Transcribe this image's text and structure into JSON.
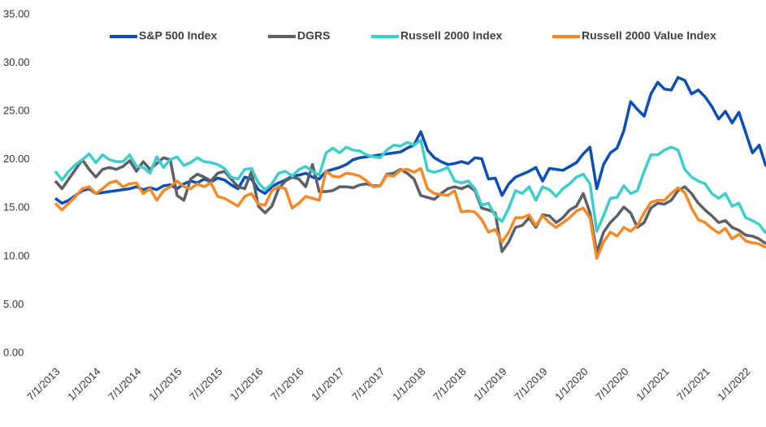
{
  "chart_data": {
    "type": "line",
    "categories": [
      "7/1/2013",
      null,
      null,
      null,
      null,
      null,
      "1/1/2014",
      null,
      null,
      null,
      null,
      null,
      "7/1/2014",
      null,
      null,
      null,
      null,
      null,
      "1/1/2015",
      null,
      null,
      null,
      null,
      null,
      "7/1/2015",
      null,
      null,
      null,
      null,
      null,
      "1/1/2016",
      null,
      null,
      null,
      null,
      null,
      "7/1/2016",
      null,
      null,
      null,
      null,
      null,
      "1/1/2017",
      null,
      null,
      null,
      null,
      null,
      "7/1/2017",
      null,
      null,
      null,
      null,
      null,
      "1/1/2018",
      null,
      null,
      null,
      null,
      null,
      "7/1/2018",
      null,
      null,
      null,
      null,
      null,
      "1/1/2019",
      null,
      null,
      null,
      null,
      null,
      "7/1/2019",
      null,
      null,
      null,
      null,
      null,
      "1/1/2020",
      null,
      null,
      null,
      null,
      null,
      "7/1/2020",
      null,
      null,
      null,
      null,
      null,
      "1/1/2021",
      null,
      null,
      null,
      null,
      null,
      "7/1/2021",
      null,
      null,
      null,
      null,
      null,
      "1/1/2022",
      null,
      null,
      null
    ],
    "series": [
      {
        "name": "S&P 500 Index",
        "color": "#0c4fb0",
        "values": [
          16.0,
          15.5,
          15.8,
          16.3,
          16.8,
          17.0,
          16.5,
          16.6,
          16.7,
          16.8,
          16.9,
          17.0,
          17.2,
          16.9,
          17.1,
          16.9,
          17.3,
          17.4,
          17.0,
          17.5,
          17.8,
          17.6,
          18.0,
          17.7,
          18.1,
          17.9,
          17.4,
          17.0,
          18.2,
          18.0,
          16.9,
          16.5,
          17.2,
          17.6,
          17.9,
          18.3,
          18.4,
          18.6,
          18.2,
          18.0,
          18.8,
          19.0,
          19.2,
          19.5,
          20.0,
          20.2,
          20.3,
          20.4,
          20.5,
          20.6,
          20.7,
          20.8,
          21.2,
          21.5,
          22.9,
          21.0,
          20.2,
          19.8,
          19.5,
          19.6,
          19.8,
          19.6,
          20.2,
          20.1,
          18.0,
          18.1,
          16.3,
          17.5,
          18.2,
          18.5,
          18.8,
          19.2,
          17.8,
          19.1,
          19.0,
          18.9,
          19.3,
          19.7,
          20.6,
          21.3,
          17.0,
          19.5,
          20.7,
          21.2,
          23.0,
          26.0,
          25.2,
          24.5,
          26.8,
          28.0,
          27.3,
          27.2,
          28.5,
          28.2,
          26.8,
          27.2,
          26.5,
          25.5,
          24.2,
          25.0,
          23.8,
          24.9,
          22.8,
          20.7,
          21.5,
          19.3
        ]
      },
      {
        "name": "DGRS",
        "color": "#5b6068",
        "values": [
          17.8,
          17.0,
          18.0,
          19.0,
          20.0,
          19.0,
          18.2,
          19.0,
          19.2,
          19.0,
          19.3,
          19.9,
          18.8,
          19.8,
          19.0,
          19.6,
          20.2,
          20.0,
          16.3,
          15.8,
          18.0,
          18.5,
          18.2,
          17.8,
          18.6,
          18.8,
          18.0,
          17.2,
          17.0,
          18.8,
          15.2,
          14.5,
          15.2,
          17.0,
          17.8,
          18.2,
          18.0,
          17.2,
          19.5,
          16.7,
          16.7,
          16.8,
          17.2,
          17.2,
          17.1,
          17.4,
          17.5,
          17.3,
          17.3,
          18.5,
          18.6,
          19.0,
          18.6,
          18.0,
          16.3,
          16.1,
          15.9,
          16.5,
          17.0,
          17.2,
          17.0,
          17.3,
          16.8,
          15.0,
          14.8,
          14.5,
          10.5,
          11.5,
          13.0,
          13.2,
          14.0,
          13.0,
          14.3,
          14.2,
          13.5,
          14.0,
          14.8,
          15.2,
          16.5,
          14.5,
          10.4,
          12.5,
          13.5,
          14.2,
          15.1,
          14.5,
          13.0,
          13.5,
          15.0,
          15.5,
          15.4,
          15.8,
          16.8,
          17.2,
          16.5,
          15.5,
          14.8,
          14.2,
          13.5,
          13.7,
          13.0,
          12.7,
          12.2,
          12.1,
          11.8,
          11.3
        ]
      },
      {
        "name": "Russell 2000 Index",
        "color": "#3fcdcc",
        "values": [
          18.8,
          17.9,
          18.8,
          19.5,
          20.0,
          20.6,
          19.7,
          20.5,
          20.0,
          19.8,
          19.8,
          20.5,
          19.3,
          19.2,
          18.6,
          20.3,
          19.2,
          20.0,
          20.3,
          19.4,
          19.7,
          20.2,
          19.8,
          19.7,
          19.5,
          19.1,
          18.2,
          18.0,
          19.0,
          19.1,
          17.6,
          16.9,
          17.5,
          18.6,
          18.8,
          18.3,
          19.0,
          19.3,
          18.8,
          18.4,
          20.7,
          21.2,
          20.7,
          21.3,
          21.0,
          20.9,
          20.5,
          20.3,
          20.2,
          21.0,
          21.5,
          21.4,
          21.8,
          21.5,
          22.0,
          18.9,
          18.7,
          18.9,
          19.2,
          17.8,
          17.6,
          17.8,
          17.0,
          15.3,
          15.5,
          14.2,
          13.6,
          15.0,
          16.8,
          16.5,
          17.2,
          15.8,
          17.2,
          16.9,
          16.2,
          17.0,
          17.5,
          18.2,
          18.5,
          17.5,
          12.6,
          14.2,
          16.0,
          16.1,
          17.3,
          16.5,
          16.8,
          18.8,
          20.5,
          20.5,
          21.0,
          21.3,
          21.0,
          19.0,
          18.2,
          17.8,
          17.5,
          16.5,
          16.0,
          16.5,
          15.2,
          15.5,
          14.0,
          13.7,
          13.3,
          12.4
        ]
      },
      {
        "name": "Russell 2000 Value Index",
        "color": "#f28a2a",
        "values": [
          15.5,
          14.8,
          15.5,
          16.2,
          17.0,
          17.2,
          16.5,
          17.0,
          17.6,
          17.8,
          17.2,
          17.5,
          17.6,
          16.5,
          17.0,
          15.8,
          16.8,
          17.2,
          17.8,
          17.2,
          17.0,
          17.5,
          17.2,
          17.6,
          16.2,
          16.0,
          15.6,
          15.2,
          16.2,
          16.5,
          15.4,
          15.3,
          16.8,
          17.2,
          17.0,
          15.0,
          15.5,
          16.2,
          16.0,
          15.8,
          18.8,
          18.3,
          18.2,
          18.6,
          18.5,
          18.3,
          17.8,
          17.2,
          17.3,
          18.4,
          18.3,
          18.9,
          19.0,
          18.7,
          19.1,
          17.0,
          16.5,
          16.4,
          16.3,
          16.8,
          14.6,
          14.7,
          14.6,
          13.8,
          12.5,
          12.8,
          11.5,
          12.5,
          14.0,
          14.0,
          14.3,
          13.2,
          14.2,
          13.5,
          13.0,
          13.5,
          14.0,
          14.7,
          15.0,
          14.0,
          9.8,
          11.5,
          12.5,
          12.1,
          13.0,
          12.6,
          13.2,
          14.5,
          15.6,
          15.8,
          15.8,
          16.5,
          17.1,
          16.6,
          15.0,
          13.8,
          13.5,
          12.9,
          12.4,
          12.9,
          11.8,
          12.3,
          11.6,
          11.4,
          11.3,
          10.9
        ]
      }
    ],
    "ylim": [
      0,
      35
    ],
    "yticks": [
      {
        "value": 0,
        "label": "0.00"
      },
      {
        "value": 5,
        "label": "5.00"
      },
      {
        "value": 10,
        "label": "10.00"
      },
      {
        "value": 15,
        "label": "15.00"
      },
      {
        "value": 20,
        "label": "20.00"
      },
      {
        "value": 25,
        "label": "25.00"
      },
      {
        "value": 30,
        "label": "30.00"
      },
      {
        "value": 35,
        "label": "35.00"
      }
    ],
    "grid": false,
    "legend": "top"
  }
}
